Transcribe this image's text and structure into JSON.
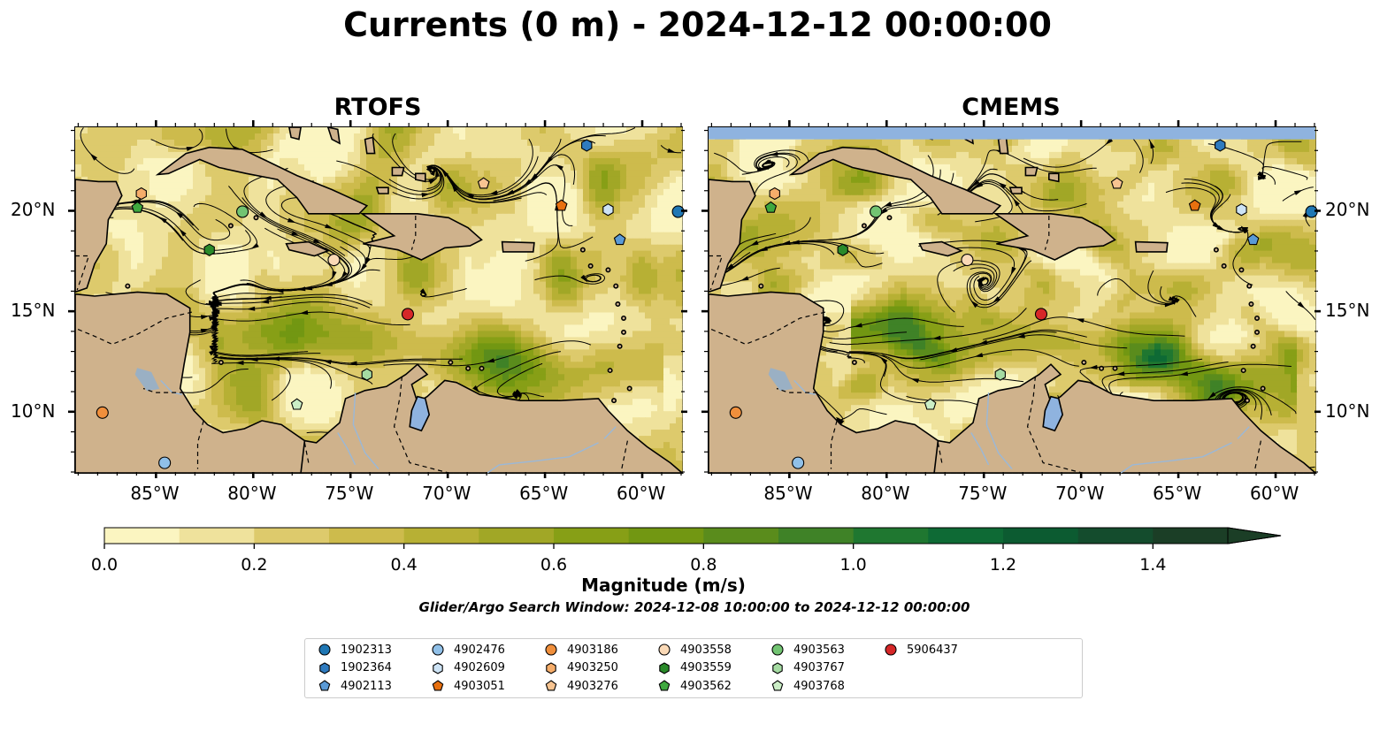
{
  "title": "Currents (0 m) - 2024-12-12 00:00:00",
  "panels": [
    {
      "name": "RTOFS"
    },
    {
      "name": "CMEMS"
    }
  ],
  "axes": {
    "x_ticks": [
      "85°W",
      "80°W",
      "75°W",
      "70°W",
      "65°W",
      "60°W"
    ],
    "x_values": [
      -85,
      -80,
      -75,
      -70,
      -65,
      -60
    ],
    "y_ticks": [
      "20°N",
      "15°N",
      "10°N"
    ],
    "y_values": [
      20,
      15,
      10
    ],
    "lon_range": [
      -89.2,
      -58.0
    ],
    "lat_range": [
      7.0,
      24.2
    ]
  },
  "colorbar": {
    "label": "Magnitude (m/s)",
    "ticks": [
      "0.0",
      "0.2",
      "0.4",
      "0.6",
      "0.8",
      "1.0",
      "1.2",
      "1.4"
    ],
    "tick_values": [
      0.0,
      0.2,
      0.4,
      0.6,
      0.8,
      1.0,
      1.2,
      1.4
    ],
    "range": [
      0.0,
      1.5
    ],
    "extend": "max",
    "colors": [
      "#fbf5c1",
      "#efe29c",
      "#ddca6c",
      "#cdbb4c",
      "#b7b034",
      "#a1a726",
      "#879f16",
      "#729712",
      "#5a8c1c",
      "#3f8227",
      "#1f7730",
      "#0e6a35",
      "#0c5b31",
      "#144c2d",
      "#1b3e26"
    ]
  },
  "search_window": "Glider/Argo Search Window: 2024-12-08 10:00:00 to 2024-12-12 00:00:00",
  "legend": [
    {
      "label": "1902313",
      "shape": "circle",
      "color": "#1f77b4",
      "lon": -58.2,
      "lat": 20.0
    },
    {
      "label": "1902364",
      "shape": "hexagon",
      "color": "#2f7bbf",
      "lon": -62.9,
      "lat": 23.3
    },
    {
      "label": "4902113",
      "shape": "pentagon",
      "color": "#5a9ad6",
      "lon": -61.2,
      "lat": 18.6
    },
    {
      "label": "4902476",
      "shape": "circle",
      "color": "#90c0e8",
      "lon": -84.6,
      "lat": 7.5
    },
    {
      "label": "4902609",
      "shape": "hexagon",
      "color": "#cde3f5",
      "lon": -61.8,
      "lat": 20.1
    },
    {
      "label": "4903051",
      "shape": "pentagon",
      "color": "#e8700f",
      "lon": -64.2,
      "lat": 20.3
    },
    {
      "label": "4903186",
      "shape": "circle",
      "color": "#f08f3c",
      "lon": -87.8,
      "lat": 10.0
    },
    {
      "label": "4903250",
      "shape": "hexagon",
      "color": "#f6ad6a",
      "lon": -85.8,
      "lat": 20.9
    },
    {
      "label": "4903276",
      "shape": "pentagon",
      "color": "#f7c491",
      "lon": -68.2,
      "lat": 21.4
    },
    {
      "label": "4903558",
      "shape": "circle",
      "color": "#fad9b6",
      "lon": -75.9,
      "lat": 17.6
    },
    {
      "label": "4903559",
      "shape": "hexagon",
      "color": "#2a8a2a",
      "lon": -82.3,
      "lat": 18.1
    },
    {
      "label": "4903562",
      "shape": "pentagon",
      "color": "#3fa83f",
      "lon": -86.0,
      "lat": 20.2
    },
    {
      "label": "4903563",
      "shape": "circle",
      "color": "#72c472",
      "lon": -80.6,
      "lat": 20.0
    },
    {
      "label": "4903767",
      "shape": "hexagon",
      "color": "#a5dba2",
      "lon": -74.2,
      "lat": 11.9
    },
    {
      "label": "4903768",
      "shape": "pentagon",
      "color": "#cbeec6",
      "lon": -77.8,
      "lat": 10.4
    },
    {
      "label": "5906437",
      "shape": "circle",
      "color": "#d62728",
      "lon": -72.1,
      "lat": 14.9
    }
  ],
  "colors": {
    "land": "#cfb28c",
    "water": "#8fb3df",
    "border": "#000000"
  }
}
